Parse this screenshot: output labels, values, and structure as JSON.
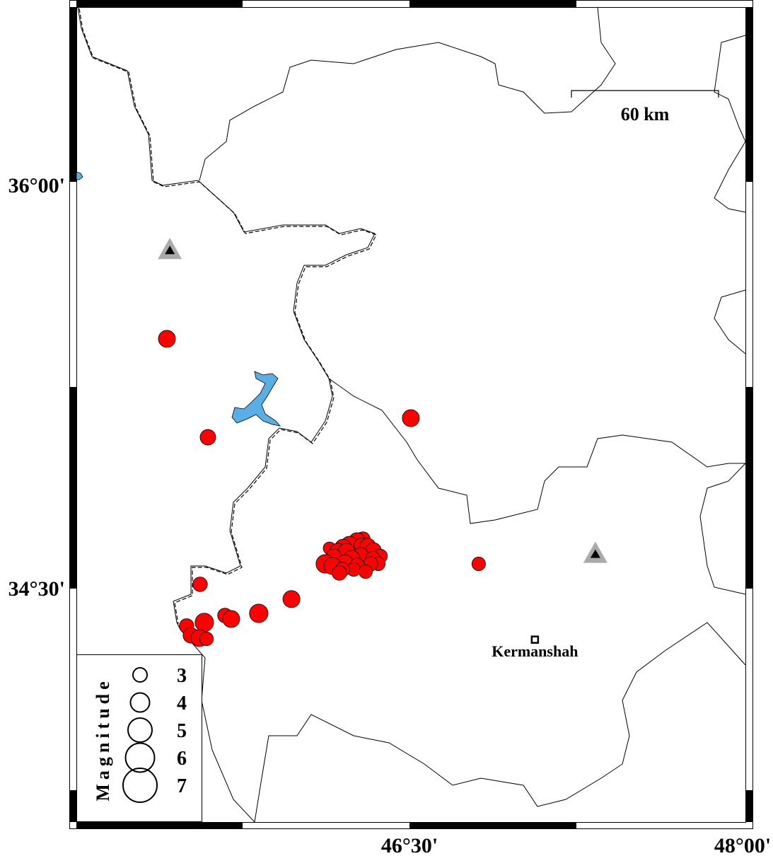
{
  "map": {
    "lon_range": [
      45.0,
      48.0
    ],
    "lat_range": [
      33.63,
      36.66
    ],
    "lat_labels": [
      {
        "value": 36.0,
        "text": "36°00'"
      },
      {
        "value": 34.5,
        "text": "34°30'"
      }
    ],
    "lon_labels": [
      {
        "value": 46.5,
        "text": "46°30'"
      },
      {
        "value": 48.0,
        "text": "48°00'"
      }
    ],
    "scale_bar": {
      "label": "60 km",
      "km": 60
    },
    "city": {
      "name": "Kermanshah",
      "lon": 47.06,
      "lat": 34.31
    },
    "stations": [
      {
        "lon": 45.43,
        "lat": 35.76
      },
      {
        "lon": 47.33,
        "lat": 34.63
      }
    ],
    "colors": {
      "event": "#ff0000",
      "water": "#5aaee6",
      "station": "#aaaaaa"
    }
  },
  "legend": {
    "title": "Magnitude",
    "magnitudes": [
      3,
      4,
      5,
      6,
      7
    ]
  },
  "events": [
    {
      "lon": 45.417,
      "lat": 35.429,
      "mag": 3.3
    },
    {
      "lon": 45.6,
      "lat": 35.063,
      "mag": 3.0
    },
    {
      "lon": 46.506,
      "lat": 35.134,
      "mag": 3.3
    },
    {
      "lon": 46.809,
      "lat": 34.592,
      "mag": 2.6
    },
    {
      "lon": 45.565,
      "lat": 34.516,
      "mag": 2.8
    },
    {
      "lon": 45.973,
      "lat": 34.461,
      "mag": 3.3
    },
    {
      "lon": 45.827,
      "lat": 34.408,
      "mag": 3.6
    },
    {
      "lon": 45.704,
      "lat": 34.387,
      "mag": 3.3
    },
    {
      "lon": 45.676,
      "lat": 34.4,
      "mag": 2.8
    },
    {
      "lon": 45.584,
      "lat": 34.374,
      "mag": 3.6
    },
    {
      "lon": 45.505,
      "lat": 34.361,
      "mag": 2.8
    },
    {
      "lon": 45.524,
      "lat": 34.326,
      "mag": 3.0
    },
    {
      "lon": 45.562,
      "lat": 34.316,
      "mag": 3.3
    },
    {
      "lon": 45.594,
      "lat": 34.313,
      "mag": 2.6
    },
    {
      "lon": 46.124,
      "lat": 34.592,
      "mag": 3.6
    },
    {
      "lon": 46.156,
      "lat": 34.584,
      "mag": 3.3
    },
    {
      "lon": 46.181,
      "lat": 34.637,
      "mag": 3.3
    },
    {
      "lon": 46.203,
      "lat": 34.655,
      "mag": 3.0
    },
    {
      "lon": 46.232,
      "lat": 34.663,
      "mag": 3.3
    },
    {
      "lon": 46.266,
      "lat": 34.676,
      "mag": 3.3
    },
    {
      "lon": 46.292,
      "lat": 34.684,
      "mag": 2.8
    },
    {
      "lon": 46.314,
      "lat": 34.658,
      "mag": 3.0
    },
    {
      "lon": 46.339,
      "lat": 34.642,
      "mag": 3.0
    },
    {
      "lon": 46.371,
      "lat": 34.621,
      "mag": 2.6
    },
    {
      "lon": 46.361,
      "lat": 34.592,
      "mag": 2.6
    },
    {
      "lon": 46.326,
      "lat": 34.592,
      "mag": 2.8
    },
    {
      "lon": 46.304,
      "lat": 34.563,
      "mag": 2.6
    },
    {
      "lon": 46.266,
      "lat": 34.584,
      "mag": 3.0
    },
    {
      "lon": 46.241,
      "lat": 34.611,
      "mag": 3.3
    },
    {
      "lon": 46.213,
      "lat": 34.597,
      "mag": 3.0
    },
    {
      "lon": 46.187,
      "lat": 34.558,
      "mag": 2.8
    },
    {
      "lon": 46.162,
      "lat": 34.621,
      "mag": 2.8
    },
    {
      "lon": 46.219,
      "lat": 34.637,
      "mag": 3.3
    },
    {
      "lon": 46.282,
      "lat": 34.624,
      "mag": 3.0
    },
    {
      "lon": 46.251,
      "lat": 34.571,
      "mag": 2.6
    },
    {
      "lon": 46.336,
      "lat": 34.611,
      "mag": 2.8
    },
    {
      "lon": 46.285,
      "lat": 34.661,
      "mag": 2.8
    },
    {
      "lon": 46.143,
      "lat": 34.65,
      "mag": 2.4
    },
    {
      "lon": 46.2,
      "lat": 34.571,
      "mag": 2.8
    }
  ]
}
